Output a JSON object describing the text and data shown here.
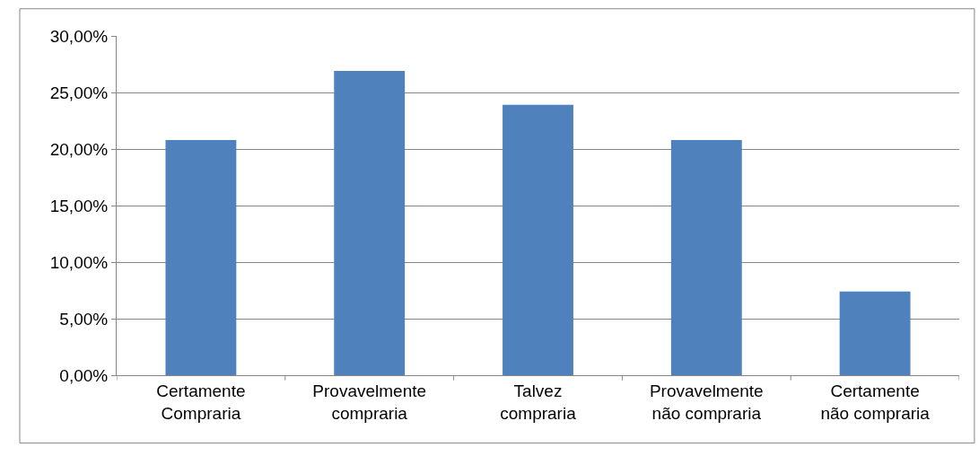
{
  "chart_data": {
    "type": "bar",
    "categories": [
      "Certamente\nCompraria",
      "Provavelmente\ncompraria",
      "Talvez\ncompraria",
      "Provavelmente\nnão compraria",
      "Certamente\nnão compraria"
    ],
    "values": [
      20.8,
      26.9,
      23.9,
      20.8,
      7.4
    ],
    "color": "#4f81bd",
    "ylim": [
      0,
      30
    ],
    "yticks": [
      {
        "value": 0,
        "label": "0,00%"
      },
      {
        "value": 5,
        "label": "5,00%"
      },
      {
        "value": 10,
        "label": "10,00%"
      },
      {
        "value": 15,
        "label": "15,00%"
      },
      {
        "value": 20,
        "label": "20,00%"
      },
      {
        "value": 25,
        "label": "25,00%"
      },
      {
        "value": 30,
        "label": "30,00%"
      }
    ],
    "grid": "y",
    "legend": false
  }
}
